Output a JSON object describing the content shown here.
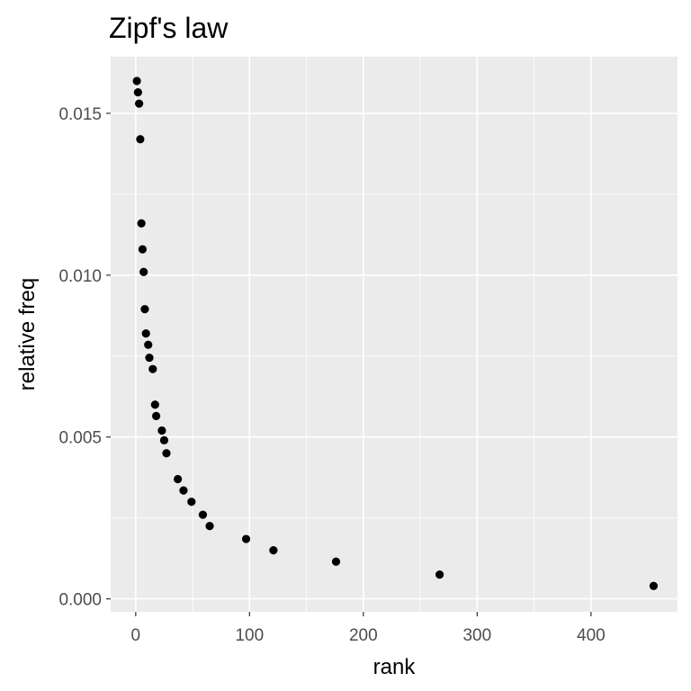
{
  "chart_data": {
    "type": "scatter",
    "title": "Zipf's law",
    "xlabel": "rank",
    "ylabel": "relative freq",
    "xlim": [
      -22,
      476
    ],
    "ylim": [
      -0.0004,
      0.01675
    ],
    "x_ticks": [
      0,
      100,
      200,
      300,
      400
    ],
    "x_tick_labels": [
      "0",
      "100",
      "200",
      "300",
      "400"
    ],
    "y_ticks": [
      0.0,
      0.005,
      0.01,
      0.015
    ],
    "y_tick_labels": [
      "0.000",
      "0.005",
      "0.010",
      "0.015"
    ],
    "grid": true,
    "points": [
      {
        "x": 1,
        "y": 0.016
      },
      {
        "x": 2,
        "y": 0.01565
      },
      {
        "x": 3,
        "y": 0.0153
      },
      {
        "x": 4,
        "y": 0.0142
      },
      {
        "x": 5,
        "y": 0.0116
      },
      {
        "x": 6,
        "y": 0.0108
      },
      {
        "x": 7,
        "y": 0.0101
      },
      {
        "x": 8,
        "y": 0.00895
      },
      {
        "x": 9,
        "y": 0.0082
      },
      {
        "x": 11,
        "y": 0.00785
      },
      {
        "x": 12,
        "y": 0.00745
      },
      {
        "x": 15,
        "y": 0.0071
      },
      {
        "x": 17,
        "y": 0.006
      },
      {
        "x": 18,
        "y": 0.00565
      },
      {
        "x": 23,
        "y": 0.0052
      },
      {
        "x": 25,
        "y": 0.0049
      },
      {
        "x": 27,
        "y": 0.0045
      },
      {
        "x": 37,
        "y": 0.0037
      },
      {
        "x": 42,
        "y": 0.00335
      },
      {
        "x": 49,
        "y": 0.003
      },
      {
        "x": 59,
        "y": 0.0026
      },
      {
        "x": 65,
        "y": 0.00225
      },
      {
        "x": 97,
        "y": 0.00185
      },
      {
        "x": 121,
        "y": 0.0015
      },
      {
        "x": 176,
        "y": 0.00115
      },
      {
        "x": 267,
        "y": 0.00075
      },
      {
        "x": 455,
        "y": 0.0004
      }
    ]
  }
}
